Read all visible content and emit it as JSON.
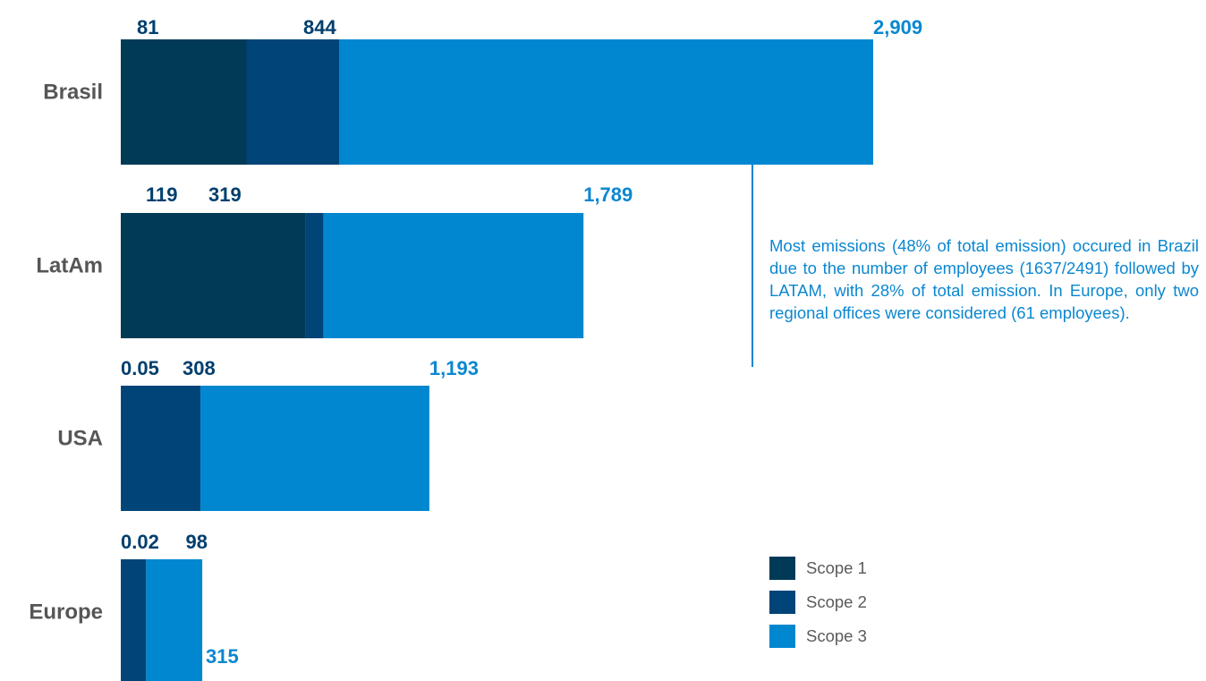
{
  "colors": {
    "scope1": "#003a56",
    "scope2": "#004478",
    "scope3": "#0087d0",
    "label_scope2": "#003f6e",
    "label_scope3": "#0b87d0"
  },
  "chart_data": {
    "type": "bar",
    "orientation": "horizontal",
    "stacked": true,
    "categories": [
      "Brasil",
      "LatAm",
      "USA",
      "Europe"
    ],
    "series": [
      {
        "name": "Scope 1",
        "values": [
          81,
          119,
          0.05,
          0.02
        ]
      },
      {
        "name": "Scope 2",
        "values": [
          844,
          319,
          308,
          98
        ]
      },
      {
        "name": "Scope 3",
        "values": [
          2909,
          1789,
          1193,
          315
        ]
      }
    ],
    "value_labels": [
      [
        "81",
        "844",
        "2,909"
      ],
      [
        "119",
        "319",
        "1,789"
      ],
      [
        "0.05",
        "308",
        "1,193"
      ],
      [
        "0.02",
        "98",
        "315"
      ]
    ],
    "legend_position": "bottom-right",
    "title": "",
    "xlabel": "",
    "ylabel": ""
  },
  "note": "Most emissions (48% of total emission) occured in Brazil due to the number of employees (1637/2491) followed by LATAM, with 28% of total emission. In Europe, only two regional offices were considered (61 employees).",
  "legend": [
    {
      "label": "Scope 1",
      "color": "#003a56"
    },
    {
      "label": "Scope 2",
      "color": "#004478"
    },
    {
      "label": "Scope 3",
      "color": "#0087d0"
    }
  ]
}
